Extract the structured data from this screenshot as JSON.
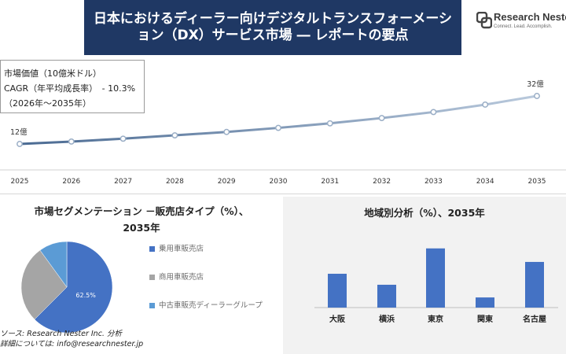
{
  "header": {
    "title": "日本におけるディーラー向けデジタルトランスフォーメーション（DX）サービス市場 ― レポートの要点",
    "logo_name": "Research Nester",
    "logo_tagline": "Connect. Lead. Accomplish."
  },
  "info_box": {
    "line1": "市場価値（10億米ドル）",
    "line2": "CAGR（年平均成長率）　- 10.3%",
    "line3": "（2026年～2035年）"
  },
  "colors": {
    "title_bg": "#1f3864",
    "line": "#5b7fa6",
    "pie_primary": "#4472c4",
    "pie_secondary": "#a5a5a5",
    "pie_tertiary": "#5b9bd5",
    "bar": "#4472c4"
  },
  "segmentation": {
    "title": "市場セグメンテーション －販売店タイプ（%）、2035年"
  },
  "regional": {
    "title": "地域別分析（%）、2035年"
  },
  "source": {
    "line1": "ソース: Research Nester Inc. 分析",
    "line2": "詳細については: info@researchnester.jp"
  },
  "chart_data": [
    {
      "type": "line",
      "x": [
        "2025",
        "2026",
        "2027",
        "2028",
        "2029",
        "2030",
        "2031",
        "2032",
        "2033",
        "2034",
        "2035"
      ],
      "values": [
        12,
        13.0,
        14.2,
        15.6,
        17.0,
        18.7,
        20.6,
        22.8,
        25.3,
        28.4,
        32
      ],
      "point_labels": {
        "first": "12億",
        "last": "32億"
      },
      "grid": false
    },
    {
      "type": "pie",
      "labels": [
        "乗用車販売店",
        "商用車販売店",
        "中古車販売ディーラーグループ"
      ],
      "values": [
        62.5,
        27.5,
        10
      ],
      "data_labels": [
        "62.5%",
        "",
        ""
      ],
      "legend_position": "right"
    },
    {
      "type": "bar",
      "categories": [
        "大阪",
        "横浜",
        "東京",
        "関東",
        "名古屋"
      ],
      "values": [
        40,
        27,
        70,
        12,
        54
      ],
      "ylim": [
        0,
        80
      ],
      "grid": false
    }
  ]
}
